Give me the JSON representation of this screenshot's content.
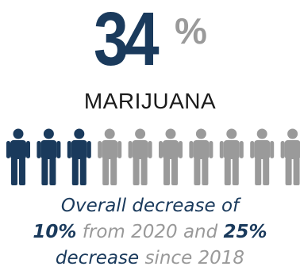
{
  "stat": {
    "number": "34",
    "unit": "%"
  },
  "label": "MARIJUANA",
  "chart_data": {
    "type": "pictogram",
    "icon": "person-icon",
    "total_icons": 10,
    "filled_fraction": 0.34,
    "filled_color": "#1a3a5c",
    "empty_color": "#9a9a9a"
  },
  "caption": {
    "line1": "Overall decrease of",
    "line2_a": "10%",
    "line2_b": " from 2020 and ",
    "line2_c": "25%",
    "line3_a": "decrease",
    "line3_b": " since 2018"
  }
}
